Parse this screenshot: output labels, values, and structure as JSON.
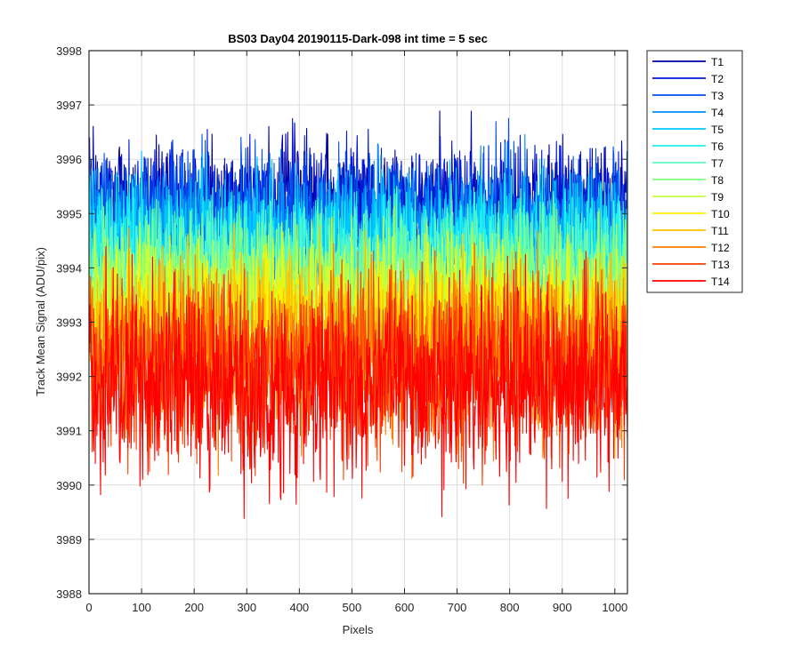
{
  "chart_data": {
    "type": "line",
    "title": "BS03 Day04 20190115-Dark-098 int time = 5 sec",
    "xlabel": "Pixels",
    "ylabel": "Track Mean Signal (ADU/pix)",
    "xlim": [
      0,
      1024
    ],
    "ylim": [
      3988,
      3998
    ],
    "x_ticks": [
      "0",
      "100",
      "200",
      "300",
      "400",
      "500",
      "600",
      "700",
      "800",
      "900",
      "1000"
    ],
    "y_ticks": [
      "3988",
      "3989",
      "3990",
      "3991",
      "3992",
      "3993",
      "3994",
      "3995",
      "3996",
      "3997",
      "3998"
    ],
    "grid": true,
    "legend_position": "outside top-right",
    "x": {
      "start": 1,
      "end": 1024,
      "step": 1
    },
    "series": [
      {
        "name": "T1",
        "color": "#0000AA",
        "mean": 3995.2,
        "spread": 0.55,
        "first_value": 3996.4
      },
      {
        "name": "T2",
        "color": "#0018D8",
        "mean": 3995.0,
        "spread": 0.6,
        "first_value": 3996.2
      },
      {
        "name": "T3",
        "color": "#0050F0",
        "mean": 3994.9,
        "spread": 0.6,
        "first_value": 3996.0
      },
      {
        "name": "T4",
        "color": "#0090F8",
        "mean": 3994.7,
        "spread": 0.6,
        "first_value": 3995.8
      },
      {
        "name": "T5",
        "color": "#00C8FF",
        "mean": 3994.6,
        "spread": 0.6,
        "first_value": 3995.6
      },
      {
        "name": "T6",
        "color": "#20F0F0",
        "mean": 3994.3,
        "spread": 0.6,
        "first_value": 3995.4
      },
      {
        "name": "T7",
        "color": "#60F8C0",
        "mean": 3994.0,
        "spread": 0.6,
        "first_value": 3995.0
      },
      {
        "name": "T8",
        "color": "#80FF80",
        "mean": 3993.7,
        "spread": 0.65,
        "first_value": 3994.6
      },
      {
        "name": "T9",
        "color": "#C8FF38",
        "mean": 3993.4,
        "spread": 0.65,
        "first_value": 3994.2
      },
      {
        "name": "T10",
        "color": "#FFF000",
        "mean": 3993.0,
        "spread": 0.7,
        "first_value": 3993.8
      },
      {
        "name": "T11",
        "color": "#FFC000",
        "mean": 3992.7,
        "spread": 0.75,
        "first_value": 3993.5
      },
      {
        "name": "T12",
        "color": "#FF8000",
        "mean": 3992.4,
        "spread": 0.8,
        "first_value": 3993.2
      },
      {
        "name": "T13",
        "color": "#FF4000",
        "mean": 3992.1,
        "spread": 0.85,
        "first_value": 3992.9
      },
      {
        "name": "T14",
        "color": "#FF0000",
        "mean": 3991.9,
        "spread": 0.9,
        "first_value": 3992.6
      }
    ]
  }
}
